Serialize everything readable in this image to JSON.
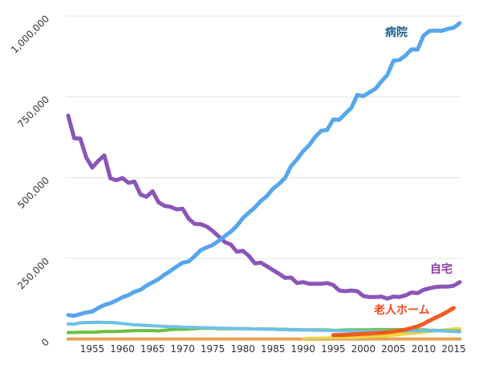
{
  "chart_data": {
    "type": "line",
    "x_start": 1951,
    "x_end": 2016,
    "ylim": [
      0,
      1000000
    ],
    "y_ticks": [
      {
        "value": 0,
        "label": "0"
      },
      {
        "value": 250000,
        "label": "250,000"
      },
      {
        "value": 500000,
        "label": "500,000"
      },
      {
        "value": 750000,
        "label": "750,000"
      },
      {
        "value": 1000000,
        "label": "1,000,000"
      }
    ],
    "x_ticks": [
      1955,
      1960,
      1965,
      1970,
      1975,
      1980,
      1985,
      1990,
      1995,
      2000,
      2005,
      2010,
      2015
    ],
    "grid": true,
    "series": [
      {
        "name": "病院",
        "color": "#55a6ee",
        "label_color": "#1f5f8f",
        "x_start": 1951,
        "values": [
          75000,
          73000,
          78000,
          83000,
          86000,
          97000,
          106000,
          112000,
          120000,
          130000,
          137000,
          147000,
          153000,
          166000,
          176000,
          186000,
          200000,
          212000,
          225000,
          237000,
          241000,
          257000,
          276000,
          284000,
          292000,
          305000,
          319000,
          333000,
          351000,
          375000,
          392000,
          408000,
          428000,
          444000,
          466000,
          481000,
          499000,
          536000,
          557000,
          582000,
          600000,
          626000,
          645000,
          648000,
          680000,
          679000,
          698000,
          716000,
          756000,
          752000,
          764000,
          775000,
          798000,
          818000,
          862000,
          864000,
          878000,
          897000,
          896000,
          940000,
          954000,
          955000,
          954000,
          960000,
          964000,
          978000
        ]
      },
      {
        "name": "自宅",
        "color": "#8a55b9",
        "label_color": "#8a3aa5",
        "x_start": 1951,
        "values": [
          692000,
          622000,
          621000,
          563000,
          531000,
          552000,
          569000,
          498000,
          492000,
          499000,
          484000,
          488000,
          448000,
          441000,
          458000,
          424000,
          413000,
          410000,
          402000,
          404000,
          373000,
          357000,
          356000,
          349000,
          335000,
          318000,
          301000,
          293000,
          271000,
          274000,
          258000,
          235000,
          237000,
          226000,
          214000,
          203000,
          190000,
          191000,
          174000,
          177000,
          172000,
          172000,
          172000,
          174000,
          168000,
          151000,
          149000,
          151000,
          149000,
          134000,
          131000,
          131000,
          132000,
          126000,
          132000,
          131000,
          136000,
          145000,
          143000,
          153000,
          158000,
          162000,
          163000,
          163000,
          166000,
          177000
        ]
      },
      {
        "name": "老人ホーム",
        "color": "#f35a1e",
        "label_color": "#f2481b",
        "x_start": 1995,
        "values": [
          13000,
          13000,
          14000,
          15000,
          16000,
          17000,
          18000,
          19000,
          20000,
          22000,
          24000,
          27000,
          30000,
          35000,
          40000,
          48000,
          58000,
          67000,
          76000,
          86000,
          97000
        ]
      },
      {
        "name": "",
        "color": "#6fc0e8",
        "label_color": "#6fc0e8",
        "x_start": 1951,
        "values": [
          48000,
          47000,
          51000,
          52000,
          52000,
          53000,
          52000,
          52000,
          51000,
          49000,
          47000,
          45000,
          44000,
          43000,
          42000,
          41000,
          40000,
          39000,
          39000,
          38000,
          37000,
          37000,
          36000,
          36000,
          35000,
          35000,
          34000,
          34000,
          33000,
          33000,
          33000,
          32000,
          32000,
          31000,
          31000,
          30000,
          30000,
          29000,
          29000,
          29000,
          29000,
          28000,
          28000,
          28000,
          27000,
          26000,
          26000,
          26000,
          25000,
          25000,
          25000,
          25000,
          25000,
          25000,
          26000,
          26000,
          26000,
          26000,
          26000,
          27000,
          27000,
          27000,
          26000,
          25000,
          24000,
          23000
        ]
      },
      {
        "name": "",
        "color": "#6cbf3a",
        "label_color": "#6cbf3a",
        "x_start": 1951,
        "values": [
          21000,
          21000,
          22000,
          22000,
          22000,
          23000,
          24000,
          24000,
          24000,
          25000,
          26000,
          27000,
          27000,
          27000,
          27000,
          26000,
          28000,
          30000,
          31000,
          31000,
          32000,
          33000,
          34000,
          34000,
          34000,
          33000,
          33000,
          33000,
          33000,
          33000,
          33000,
          32000,
          32000,
          32000,
          32000,
          31000,
          31000,
          30000,
          30000,
          29000,
          29000,
          29000,
          29000,
          29000,
          28000,
          28000,
          29000,
          29000,
          29000,
          29000,
          29000,
          30000,
          30000,
          30000,
          30000,
          30000,
          30000,
          30000,
          29000,
          29000,
          28000,
          28000,
          27000,
          26000,
          26000,
          25000
        ]
      },
      {
        "name": "",
        "color": "#f1d637",
        "label_color": "#f1d637",
        "x_start": 1990,
        "values": [
          2000,
          3000,
          3000,
          4000,
          4000,
          5000,
          5000,
          6000,
          6000,
          7000,
          8000,
          9000,
          10000,
          11000,
          12000,
          13000,
          15000,
          17000,
          19000,
          20000,
          22000,
          24000,
          26000,
          28000,
          30000,
          32000,
          33000
        ]
      },
      {
        "name": "",
        "color": "#f39a2b",
        "label_color": "#f39a2b",
        "x_start": 1951,
        "values": [
          1000,
          1000,
          1000,
          1000,
          1000,
          1000,
          1000,
          1000,
          1000,
          1000,
          1000,
          1000,
          1000,
          1000,
          1000,
          1000,
          1000,
          1000,
          1000,
          1000,
          1000,
          1000,
          1000,
          1000,
          1000,
          1000,
          1000,
          1000,
          1000,
          1000,
          1000,
          1000,
          1000,
          1000,
          1000,
          1000,
          1000,
          1000,
          1000,
          1000,
          1000,
          1000,
          1000,
          1000,
          1000,
          1000,
          1000,
          1000,
          1000,
          1000,
          1000,
          1000,
          1000,
          1000,
          1000,
          1000,
          1000,
          1000,
          1000,
          1000,
          1000,
          1000,
          1000,
          1000,
          1000,
          1000
        ]
      }
    ]
  }
}
